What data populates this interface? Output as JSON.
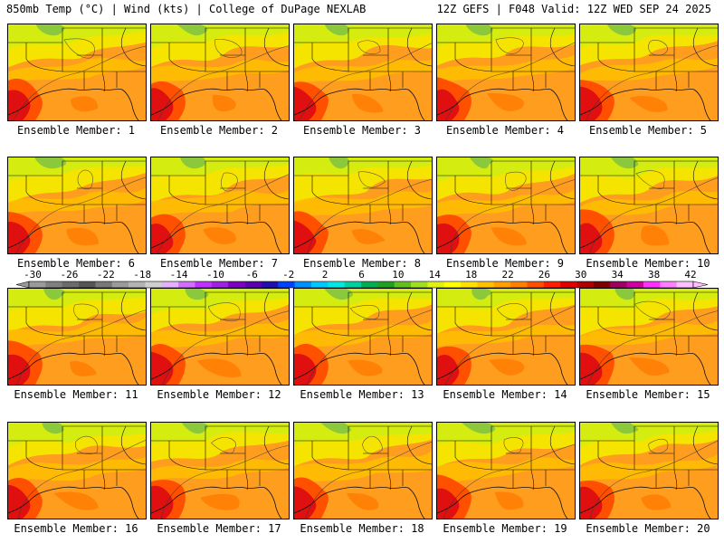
{
  "header": {
    "left": "850mb Temp (°C) | Wind (kts) | College of DuPage NEXLAB",
    "right": "12Z GEFS | F048 Valid: 12Z WED SEP 24 2025"
  },
  "map_region": "Southern United States / Gulf Coast",
  "panels": [
    {
      "member": 1,
      "label": "Ensemble Member: 1"
    },
    {
      "member": 2,
      "label": "Ensemble Member: 2"
    },
    {
      "member": 3,
      "label": "Ensemble Member: 3"
    },
    {
      "member": 4,
      "label": "Ensemble Member: 4"
    },
    {
      "member": 5,
      "label": "Ensemble Member: 5"
    },
    {
      "member": 6,
      "label": "Ensemble Member: 6"
    },
    {
      "member": 7,
      "label": "Ensemble Member: 7"
    },
    {
      "member": 8,
      "label": "Ensemble Member: 8"
    },
    {
      "member": 9,
      "label": "Ensemble Member: 9"
    },
    {
      "member": 10,
      "label": "Ensemble Member: 10"
    },
    {
      "member": 11,
      "label": "Ensemble Member: 11"
    },
    {
      "member": 12,
      "label": "Ensemble Member: 12"
    },
    {
      "member": 13,
      "label": "Ensemble Member: 13"
    },
    {
      "member": 14,
      "label": "Ensemble Member: 14"
    },
    {
      "member": 15,
      "label": "Ensemble Member: 15"
    },
    {
      "member": 16,
      "label": "Ensemble Member: 16"
    },
    {
      "member": 17,
      "label": "Ensemble Member: 17"
    },
    {
      "member": 18,
      "label": "Ensemble Member: 18"
    },
    {
      "member": 19,
      "label": "Ensemble Member: 19"
    },
    {
      "member": 20,
      "label": "Ensemble Member: 20"
    }
  ],
  "colorbar": {
    "labels": [
      "-30",
      "-26",
      "-22",
      "-18",
      "-14",
      "-10",
      "-6",
      "-2",
      "2",
      "6",
      "10",
      "14",
      "18",
      "22",
      "26",
      "30",
      "34",
      "38",
      "42"
    ],
    "colors": [
      "#9a9a9a",
      "#7f7f7f",
      "#6b6b6b",
      "#555555",
      "#787878",
      "#9a9a9a",
      "#b4b4b4",
      "#cfcfcf",
      "#e4b0ff",
      "#d46cff",
      "#c030ff",
      "#a020e0",
      "#8000c0",
      "#5a00b0",
      "#2010b0",
      "#0040ff",
      "#0090ff",
      "#00c8ff",
      "#00e8e0",
      "#00d0a0",
      "#00b050",
      "#20a020",
      "#60c020",
      "#a0e020",
      "#e0f010",
      "#ffff00",
      "#ffe000",
      "#ffc000",
      "#ffa000",
      "#ff8000",
      "#ff5000",
      "#ff2000",
      "#e00000",
      "#b00000",
      "#800000",
      "#a00060",
      "#d000a0",
      "#ff30ff",
      "#ff80ff",
      "#ffc0ff"
    ]
  }
}
